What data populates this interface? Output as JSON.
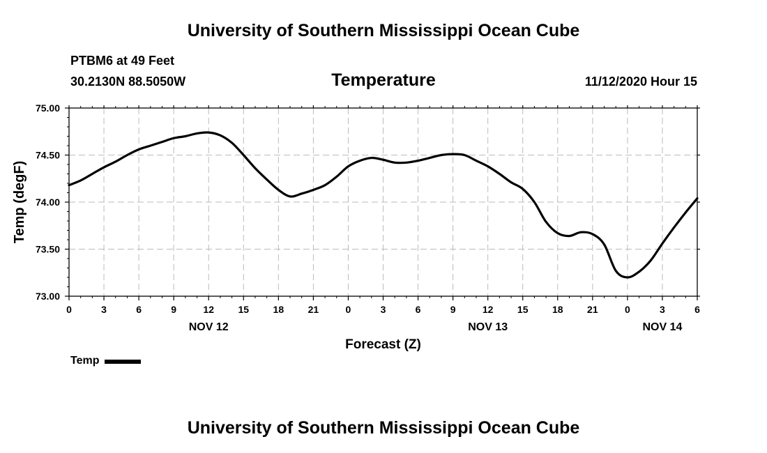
{
  "header": {
    "title": "University of Southern Mississippi Ocean Cube",
    "station": "PTBM6 at 49 Feet",
    "coords": "30.2130N 88.5050W",
    "chart_title": "Temperature",
    "datetime": "11/12/2020 Hour 15"
  },
  "footer": {
    "title": "University of Southern Mississippi Ocean Cube"
  },
  "legend": {
    "label": "Temp"
  },
  "colors": {
    "line": "#000000",
    "grid": "#bbbbbb",
    "axis": "#000000"
  },
  "chart_data": {
    "type": "line",
    "title": "Temperature",
    "xlabel": "Forecast (Z)",
    "ylabel": "Temp (degF)",
    "xlim": [
      0,
      54
    ],
    "ylim": [
      73.0,
      75.0
    ],
    "x_ticks": [
      0,
      3,
      6,
      9,
      12,
      15,
      18,
      21,
      24,
      27,
      30,
      33,
      36,
      39,
      42,
      45,
      48,
      51,
      54
    ],
    "x_tick_labels": [
      "0",
      "3",
      "6",
      "9",
      "12",
      "15",
      "18",
      "21",
      "0",
      "3",
      "6",
      "9",
      "12",
      "15",
      "18",
      "21",
      "0",
      "3",
      "6"
    ],
    "y_ticks": [
      73.0,
      73.5,
      74.0,
      74.5,
      75.0
    ],
    "y_tick_labels": [
      "73.00",
      "73.50",
      "74.00",
      "74.50",
      "75.00"
    ],
    "day_labels": [
      {
        "x": 12,
        "label": "NOV 12"
      },
      {
        "x": 36,
        "label": "NOV 13"
      },
      {
        "x": 51,
        "label": "NOV 14"
      }
    ],
    "grid": true,
    "series": [
      {
        "name": "Temp",
        "x": [
          0,
          1,
          2,
          3,
          4,
          5,
          6,
          7,
          8,
          9,
          10,
          11,
          12,
          13,
          14,
          15,
          16,
          17,
          18,
          19,
          20,
          21,
          22,
          23,
          24,
          25,
          26,
          27,
          28,
          29,
          30,
          31,
          32,
          33,
          34,
          35,
          36,
          37,
          38,
          39,
          40,
          41,
          42,
          43,
          44,
          45,
          46,
          47,
          48,
          49,
          50,
          51,
          52,
          53,
          54
        ],
        "values": [
          74.18,
          74.23,
          74.3,
          74.37,
          74.43,
          74.5,
          74.56,
          74.6,
          74.64,
          74.68,
          74.7,
          74.73,
          74.74,
          74.71,
          74.63,
          74.5,
          74.36,
          74.24,
          74.13,
          74.06,
          74.09,
          74.13,
          74.18,
          74.27,
          74.38,
          74.44,
          74.47,
          74.45,
          74.42,
          74.42,
          74.44,
          74.47,
          74.5,
          74.51,
          74.5,
          74.44,
          74.38,
          74.3,
          74.21,
          74.14,
          74.0,
          73.79,
          73.67,
          73.64,
          73.68,
          73.66,
          73.55,
          73.27,
          73.2,
          73.26,
          73.38,
          73.56,
          73.73,
          73.89,
          74.04
        ]
      }
    ]
  }
}
